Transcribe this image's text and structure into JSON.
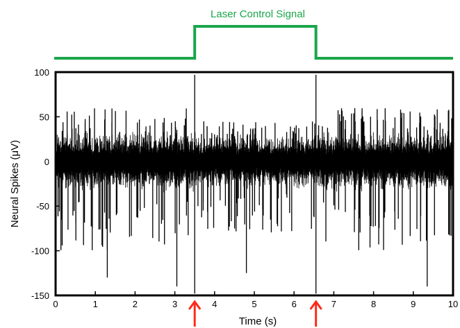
{
  "chart_data": {
    "type": "line",
    "title": "",
    "xlabel": "Time (s)",
    "ylabel": "Neural Spikes (μV)",
    "xlim": [
      0,
      10
    ],
    "ylim": [
      -150,
      100
    ],
    "xticks": [
      "0",
      "1",
      "2",
      "3",
      "4",
      "5",
      "6",
      "7",
      "8",
      "9",
      "10"
    ],
    "yticks": [
      "100",
      "50",
      "0",
      "-50",
      "-100",
      "-150"
    ],
    "grid": false,
    "series": [
      {
        "name": "",
        "color": "#000000",
        "description_values": {
          "noise_band_uV": [
            -35,
            35
          ],
          "typical_spike_max_uV": 60,
          "typical_spike_min_uV": -100
        },
        "peaks": [
          {
            "x": 3.5,
            "y": 97
          },
          {
            "x": 6.55,
            "y": 97
          }
        ],
        "troughs": [
          {
            "x": 3.5,
            "y": -148
          },
          {
            "x": 6.55,
            "y": -148
          },
          {
            "x": 3.05,
            "y": -140
          },
          {
            "x": 9.35,
            "y": -140
          },
          {
            "x": 1.3,
            "y": -130
          },
          {
            "x": 4.8,
            "y": -125
          }
        ]
      }
    ],
    "laser_control": {
      "label": "Laser Control Signal",
      "color": "#1aa64a",
      "on_interval": [
        3.5,
        6.55
      ]
    },
    "markers": [
      {
        "x": 3.5,
        "color": "#ff2a1a",
        "shape": "up-arrow"
      },
      {
        "x": 6.55,
        "color": "#ff2a1a",
        "shape": "up-arrow"
      }
    ]
  }
}
